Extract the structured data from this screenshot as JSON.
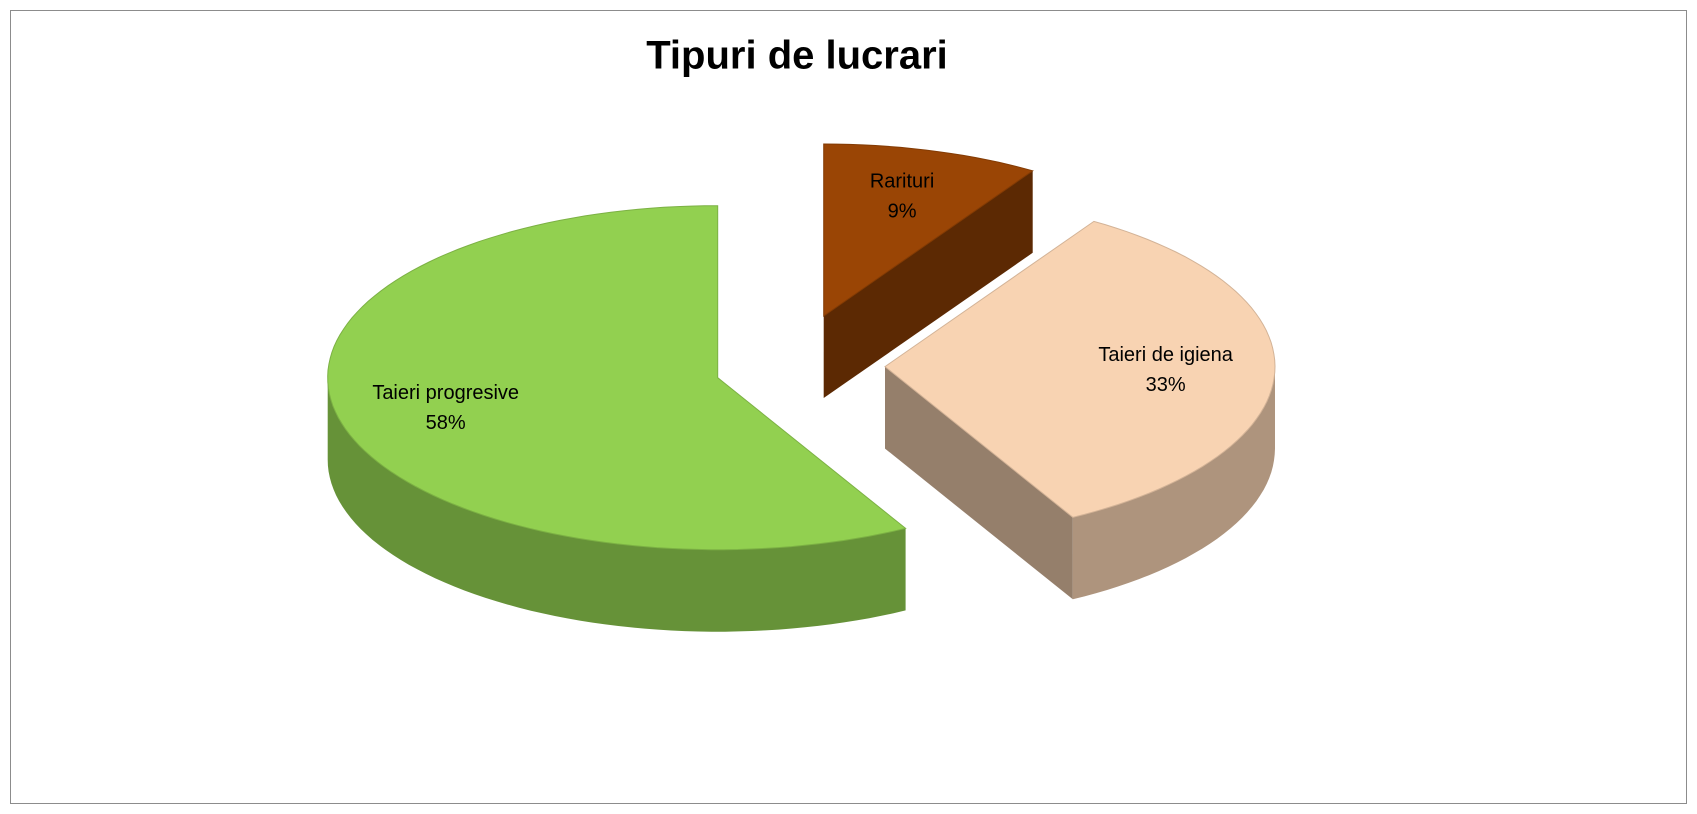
{
  "chart_data": {
    "type": "pie",
    "title": "Tipuri de lucrari",
    "categories": [
      "Rarituri",
      "Taieri de igiena",
      "Taieri progresive"
    ],
    "values": [
      9,
      33,
      58
    ],
    "value_labels": [
      "9%",
      "33%",
      "58%"
    ],
    "colors": [
      "#9a4505",
      "#f8d3b2",
      "#92d050"
    ]
  }
}
